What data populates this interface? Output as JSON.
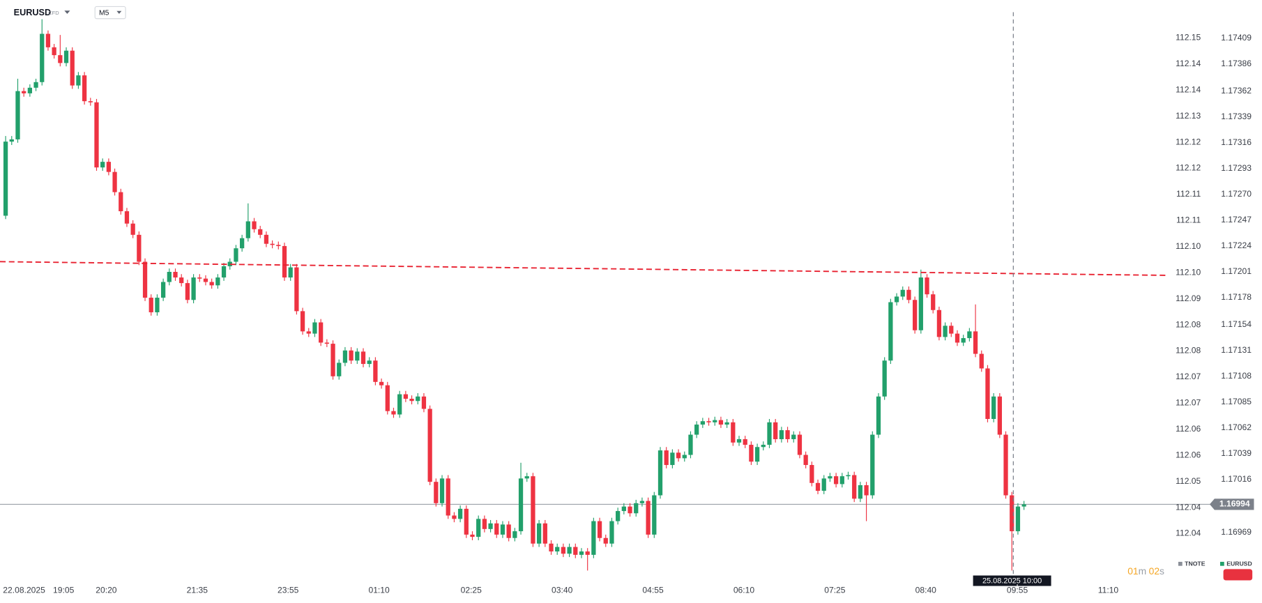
{
  "chart_data": {
    "type": "candlestick",
    "title": "EURUSD",
    "badge": "CFD",
    "interval": "M5",
    "up_color": "#22a06b",
    "down_color": "#ee3342",
    "grid": false,
    "xlim": [
      -0.93,
      191.6
    ],
    "xticks": [
      {
        "value": 3.05,
        "label": "22.08.2025"
      },
      {
        "value": 9.56,
        "label": "19:05"
      },
      {
        "value": 16.6,
        "label": "20:20"
      },
      {
        "value": 31.6,
        "label": "21:35"
      },
      {
        "value": 46.6,
        "label": "23:55"
      },
      {
        "value": 61.6,
        "label": "01:10"
      },
      {
        "value": 76.8,
        "label": "02:25"
      },
      {
        "value": 91.8,
        "label": "03:40"
      },
      {
        "value": 106.8,
        "label": "04:55"
      },
      {
        "value": 121.8,
        "label": "06:10"
      },
      {
        "value": 136.8,
        "label": "07:25"
      },
      {
        "value": 151.8,
        "label": "08:40"
      },
      {
        "value": 166.9,
        "label": "09:55"
      },
      {
        "value": 181.9,
        "label": "11:10"
      }
    ],
    "ylim": [
      1.16927,
      1.17443
    ],
    "yticks": [
      1.17409,
      1.17386,
      1.17362,
      1.17339,
      1.17316,
      1.17293,
      {
        "value": 1.1727,
        "label": "1.17270"
      },
      1.17247,
      1.17224,
      1.17201,
      1.17178,
      1.17154,
      1.17131,
      1.17108,
      1.17085,
      1.17062,
      1.17039,
      1.17016,
      1.16969
    ],
    "y2lim": [
      112.0326,
      112.1614
    ],
    "y2ticks": [
      {
        "value": 112.153,
        "label": "112.15"
      },
      {
        "value": 112.1472,
        "label": "112.14"
      },
      {
        "value": 112.1414,
        "label": "112.14"
      },
      {
        "value": 112.1356,
        "label": "112.13"
      },
      {
        "value": 112.1298,
        "label": "112.12"
      },
      {
        "value": 112.124,
        "label": "112.12"
      },
      {
        "value": 112.1182,
        "label": "112.11"
      },
      {
        "value": 112.1124,
        "label": "112.11"
      },
      {
        "value": 112.1066,
        "label": "112.10"
      },
      {
        "value": 112.1008,
        "label": "112.10"
      },
      {
        "value": 112.095,
        "label": "112.09"
      },
      {
        "value": 112.0892,
        "label": "112.08"
      },
      {
        "value": 112.0834,
        "label": "112.08"
      },
      {
        "value": 112.0776,
        "label": "112.07"
      },
      {
        "value": 112.0718,
        "label": "112.07"
      },
      {
        "value": 112.066,
        "label": "112.06"
      },
      {
        "value": 112.0602,
        "label": "112.06"
      },
      {
        "value": 112.0544,
        "label": "112.05"
      },
      {
        "value": 112.0486,
        "label": "112.04"
      },
      {
        "value": 112.0428,
        "label": "112.04"
      }
    ],
    "legend": [
      {
        "name": "TNOTE",
        "color": "#8a8f98"
      },
      {
        "name": "EURUSD",
        "color": "#22a06b"
      }
    ],
    "crosshair_label": "25.08.2025 10:00",
    "timer": {
      "minutes": "01",
      "minutes_unit": "m",
      "seconds": "02",
      "seconds_unit": "s"
    },
    "open": [
      1.17251,
      1.17317,
      1.17319,
      1.17362,
      1.1736,
      1.17365,
      1.1737,
      1.17413,
      1.17401,
      1.17394,
      1.17387,
      1.17398,
      1.17367,
      1.17376,
      1.17353,
      1.17352,
      1.17294,
      1.17299,
      1.1729,
      1.17272,
      1.17255,
      1.17244,
      1.17234,
      1.1721,
      1.17178,
      1.17165,
      1.17178,
      1.17192,
      1.17201,
      1.17196,
      1.17191,
      1.17176,
      1.17196,
      1.17195,
      1.17192,
      1.17189,
      1.17196,
      1.17206,
      1.1721,
      1.17222,
      1.17231,
      1.17246,
      1.17239,
      1.17234,
      1.17226,
      1.17225,
      1.17224,
      1.17196,
      1.17205,
      1.17166,
      1.17148,
      1.17146,
      1.17156,
      1.17138,
      1.17137,
      1.17108,
      1.1712,
      1.17131,
      1.17122,
      1.1713,
      1.17119,
      1.17122,
      1.17103,
      1.171,
      1.17077,
      1.17074,
      1.17092,
      1.17088,
      1.17086,
      1.1709,
      1.17079,
      1.17014,
      1.16995,
      1.17017,
      1.16984,
      1.16981,
      1.1699,
      1.16967,
      1.16965,
      1.16981,
      1.16972,
      1.16977,
      1.16967,
      1.16976,
      1.16964,
      1.1697,
      1.17017,
      1.17019,
      1.16959,
      1.16977,
      1.16959,
      1.16952,
      1.16956,
      1.1695,
      1.16956,
      1.16949,
      1.16952,
      1.16949,
      1.16979,
      1.16964,
      1.16959,
      1.16979,
      1.16988,
      1.16992,
      1.16986,
      1.16995,
      1.16997,
      1.16967,
      1.17002,
      1.17042,
      1.17029,
      1.1704,
      1.17035,
      1.17038,
      1.17056,
      1.17065,
      1.17068,
      1.17067,
      1.17069,
      1.17065,
      1.17067,
      1.17049,
      1.17052,
      1.17047,
      1.17032,
      1.17045,
      1.17047,
      1.17067,
      1.17052,
      1.1706,
      1.17052,
      1.17056,
      1.17038,
      1.17029,
      1.17013,
      1.17006,
      1.17017,
      1.17019,
      1.17012,
      1.17019,
      1.1702,
      1.16999,
      1.17011,
      1.17002,
      1.17056,
      1.1709,
      1.17122,
      1.17174,
      1.17179,
      1.17185,
      1.17176,
      1.17149,
      1.17196,
      1.17181,
      1.17167,
      1.17143,
      1.17153,
      1.17146,
      1.17138,
      1.17142,
      1.17148,
      1.17128,
      1.17115,
      1.1707,
      1.1709,
      1.17056,
      1.17002,
      1.1697,
      1.16992
    ],
    "high": [
      1.17322,
      1.17322,
      1.17373,
      1.17365,
      1.17368,
      1.17373,
      1.17426,
      1.17416,
      1.17404,
      1.17412,
      1.17401,
      1.17401,
      1.17379,
      1.17379,
      1.17356,
      1.17355,
      1.17302,
      1.17302,
      1.17293,
      1.17275,
      1.17258,
      1.17247,
      1.17237,
      1.17213,
      1.17181,
      1.17181,
      1.17195,
      1.17204,
      1.17204,
      1.17199,
      1.17194,
      1.17199,
      1.17199,
      1.17198,
      1.17195,
      1.17199,
      1.17209,
      1.17213,
      1.17225,
      1.17234,
      1.17262,
      1.17249,
      1.17242,
      1.17237,
      1.17229,
      1.17228,
      1.17227,
      1.17208,
      1.17208,
      1.17169,
      1.17151,
      1.17159,
      1.17159,
      1.17141,
      1.1714,
      1.17123,
      1.17134,
      1.17134,
      1.17133,
      1.17133,
      1.17125,
      1.17125,
      1.17106,
      1.17103,
      1.1708,
      1.17095,
      1.17095,
      1.17091,
      1.17093,
      1.17093,
      1.17082,
      1.17017,
      1.1702,
      1.1702,
      1.16987,
      1.16993,
      1.16993,
      1.1697,
      1.16984,
      1.16984,
      1.1698,
      1.1698,
      1.16979,
      1.16979,
      1.16973,
      1.17031,
      1.17022,
      1.17022,
      1.1698,
      1.1698,
      1.16962,
      1.16959,
      1.16959,
      1.16959,
      1.16959,
      1.16955,
      1.16955,
      1.16982,
      1.16982,
      1.16967,
      1.16982,
      1.16991,
      1.16995,
      1.16995,
      1.16998,
      1.17,
      1.17,
      1.17005,
      1.17045,
      1.17045,
      1.17043,
      1.17043,
      1.17041,
      1.17059,
      1.17068,
      1.17071,
      1.17071,
      1.17072,
      1.17072,
      1.1707,
      1.1707,
      1.17055,
      1.17055,
      1.1705,
      1.17048,
      1.1705,
      1.1707,
      1.1707,
      1.17063,
      1.17063,
      1.17059,
      1.17059,
      1.17041,
      1.17032,
      1.17016,
      1.1702,
      1.17022,
      1.17022,
      1.17022,
      1.17023,
      1.17023,
      1.17014,
      1.17014,
      1.17059,
      1.17093,
      1.17125,
      1.17177,
      1.17182,
      1.17188,
      1.17188,
      1.17179,
      1.17203,
      1.17199,
      1.17184,
      1.1717,
      1.17156,
      1.17156,
      1.17149,
      1.17145,
      1.17151,
      1.17172,
      1.17131,
      1.17118,
      1.17093,
      1.17093,
      1.17059,
      1.17005,
      1.16995,
      1.16997
    ],
    "low": [
      1.17248,
      1.17314,
      1.17316,
      1.17357,
      1.17357,
      1.17362,
      1.17367,
      1.17398,
      1.17391,
      1.17384,
      1.17384,
      1.17364,
      1.17364,
      1.1735,
      1.17349,
      1.17291,
      1.17291,
      1.17287,
      1.17269,
      1.17252,
      1.17241,
      1.17231,
      1.17207,
      1.17175,
      1.17162,
      1.17162,
      1.17175,
      1.17189,
      1.17193,
      1.17188,
      1.17173,
      1.17173,
      1.17192,
      1.17189,
      1.17186,
      1.17186,
      1.17193,
      1.17203,
      1.17207,
      1.17219,
      1.17228,
      1.17236,
      1.17231,
      1.17223,
      1.17222,
      1.17221,
      1.17193,
      1.17193,
      1.17163,
      1.17145,
      1.17143,
      1.17143,
      1.17135,
      1.17134,
      1.17105,
      1.17105,
      1.17117,
      1.17119,
      1.17119,
      1.17116,
      1.17116,
      1.171,
      1.17097,
      1.17074,
      1.17071,
      1.17071,
      1.17085,
      1.17083,
      1.17083,
      1.17076,
      1.17011,
      1.16992,
      1.16992,
      1.16981,
      1.16978,
      1.16978,
      1.16964,
      1.16962,
      1.16962,
      1.16969,
      1.16969,
      1.16964,
      1.16964,
      1.16961,
      1.16961,
      1.16967,
      1.17014,
      1.16956,
      1.16956,
      1.16956,
      1.16949,
      1.16949,
      1.16947,
      1.16947,
      1.16946,
      1.16946,
      1.16935,
      1.16946,
      1.16961,
      1.16956,
      1.16956,
      1.16976,
      1.16985,
      1.16983,
      1.16983,
      1.16992,
      1.16964,
      1.16964,
      1.16999,
      1.17026,
      1.17026,
      1.17032,
      1.17032,
      1.17035,
      1.17053,
      1.17062,
      1.17064,
      1.17064,
      1.17062,
      1.17062,
      1.17046,
      1.17046,
      1.17044,
      1.17029,
      1.17029,
      1.17042,
      1.17044,
      1.17049,
      1.17049,
      1.17049,
      1.17049,
      1.17035,
      1.17026,
      1.1701,
      1.17003,
      1.17003,
      1.17014,
      1.17009,
      1.17009,
      1.17016,
      1.16996,
      1.16996,
      1.16979,
      1.16999,
      1.17053,
      1.17087,
      1.17119,
      1.17171,
      1.17176,
      1.17173,
      1.17146,
      1.17146,
      1.17178,
      1.17164,
      1.1714,
      1.1714,
      1.17143,
      1.17135,
      1.17135,
      1.17139,
      1.17125,
      1.17112,
      1.17067,
      1.17067,
      1.17053,
      1.16999,
      1.16935,
      1.16967,
      1.16989
    ],
    "close": [
      1.17317,
      1.17319,
      1.17362,
      1.1736,
      1.17365,
      1.1737,
      1.17413,
      1.17401,
      1.17394,
      1.17387,
      1.17398,
      1.17367,
      1.17376,
      1.17353,
      1.17352,
      1.17294,
      1.17299,
      1.1729,
      1.17272,
      1.17255,
      1.17244,
      1.17234,
      1.1721,
      1.17178,
      1.17165,
      1.17178,
      1.17192,
      1.17201,
      1.17196,
      1.17191,
      1.17176,
      1.17196,
      1.17195,
      1.17192,
      1.17189,
      1.17196,
      1.17206,
      1.1721,
      1.17222,
      1.17231,
      1.17246,
      1.17239,
      1.17234,
      1.17226,
      1.17225,
      1.17224,
      1.17196,
      1.17205,
      1.17166,
      1.17148,
      1.17146,
      1.17156,
      1.17138,
      1.17137,
      1.17108,
      1.1712,
      1.17131,
      1.17122,
      1.1713,
      1.17119,
      1.17122,
      1.17103,
      1.171,
      1.17077,
      1.17074,
      1.17092,
      1.17088,
      1.17086,
      1.1709,
      1.17079,
      1.17014,
      1.16995,
      1.17017,
      1.16984,
      1.16981,
      1.1699,
      1.16967,
      1.16965,
      1.16981,
      1.16972,
      1.16977,
      1.16967,
      1.16976,
      1.16964,
      1.1697,
      1.17017,
      1.17019,
      1.16959,
      1.16977,
      1.16959,
      1.16952,
      1.16956,
      1.1695,
      1.16956,
      1.16949,
      1.16952,
      1.16949,
      1.16979,
      1.16964,
      1.16959,
      1.16979,
      1.16988,
      1.16992,
      1.16986,
      1.16995,
      1.16997,
      1.16967,
      1.17002,
      1.17042,
      1.17029,
      1.1704,
      1.17035,
      1.17038,
      1.17056,
      1.17065,
      1.17068,
      1.17067,
      1.17069,
      1.17065,
      1.17067,
      1.17049,
      1.17052,
      1.17047,
      1.17032,
      1.17045,
      1.17047,
      1.17067,
      1.17052,
      1.1706,
      1.17052,
      1.17056,
      1.17038,
      1.17029,
      1.17013,
      1.17006,
      1.17017,
      1.17019,
      1.17012,
      1.17019,
      1.1702,
      1.16999,
      1.17011,
      1.17002,
      1.17056,
      1.1709,
      1.17122,
      1.17174,
      1.17179,
      1.17185,
      1.17176,
      1.17149,
      1.17196,
      1.17181,
      1.17167,
      1.17143,
      1.17153,
      1.17146,
      1.17138,
      1.17142,
      1.17148,
      1.17128,
      1.17115,
      1.1707,
      1.1709,
      1.17056,
      1.17002,
      1.1697,
      1.16992,
      1.16994
    ]
  }
}
